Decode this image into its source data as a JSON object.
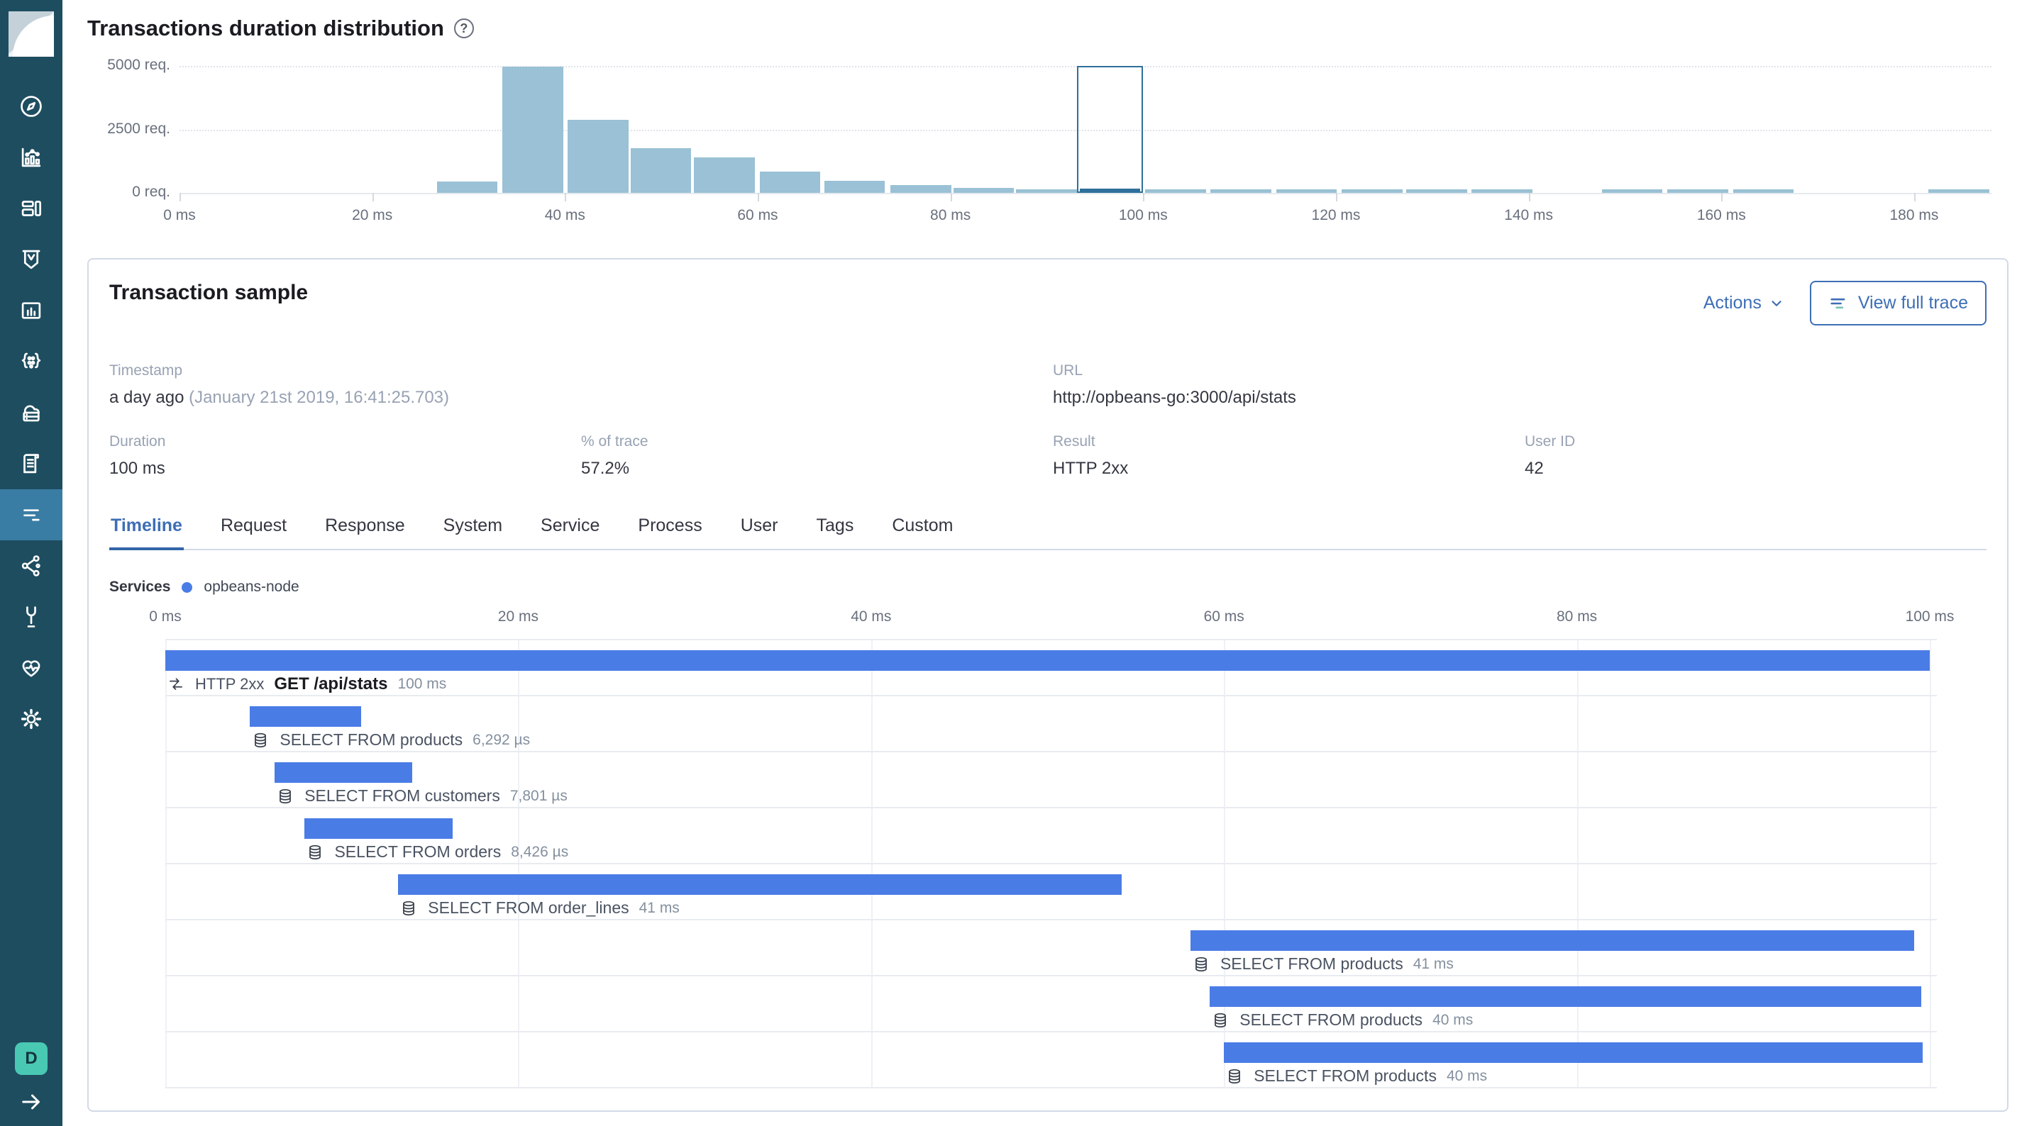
{
  "sidebar": {
    "items": [
      "discover",
      "visualize",
      "dashboard",
      "timelion",
      "canvas",
      "machine-learning",
      "infrastructure",
      "logs",
      "apm",
      "graph",
      "dev-tools",
      "monitoring",
      "management"
    ],
    "active_item": "apm",
    "avatar_label": "D"
  },
  "distribution": {
    "title": "Transactions duration distribution",
    "help": "?"
  },
  "chart_data": {
    "type": "bar",
    "title": "Transactions duration distribution",
    "x_tick_values_ms": [
      0,
      20,
      40,
      60,
      80,
      100,
      120,
      140,
      160,
      180
    ],
    "x_tick_labels": [
      "0 ms",
      "20 ms",
      "40 ms",
      "60 ms",
      "80 ms",
      "100 ms",
      "120 ms",
      "140 ms",
      "160 ms",
      "180 ms"
    ],
    "y_tick_values": [
      0,
      2500,
      5000
    ],
    "y_tick_labels": [
      "0 req.",
      "2500 req.",
      "5000 req."
    ],
    "ylim": [
      0,
      5000
    ],
    "bucket_width_ms": 6.77,
    "grid": "dotted-horizontal",
    "buckets": [
      {
        "start_ms": 26.7,
        "count": 447
      },
      {
        "start_ms": 33.5,
        "count": 4980
      },
      {
        "start_ms": 40.3,
        "count": 2870
      },
      {
        "start_ms": 46.8,
        "count": 1760
      },
      {
        "start_ms": 53.4,
        "count": 1390
      },
      {
        "start_ms": 60.2,
        "count": 840
      },
      {
        "start_ms": 66.9,
        "count": 480
      },
      {
        "start_ms": 73.8,
        "count": 300
      },
      {
        "start_ms": 80.3,
        "count": 200
      },
      {
        "start_ms": 86.8,
        "count": 150
      },
      {
        "start_ms": 93.4,
        "count": 170,
        "selected": true
      },
      {
        "start_ms": 100.2,
        "count": 150
      },
      {
        "start_ms": 107.0,
        "count": 150
      },
      {
        "start_ms": 113.8,
        "count": 150
      },
      {
        "start_ms": 120.6,
        "count": 150
      },
      {
        "start_ms": 127.3,
        "count": 150
      },
      {
        "start_ms": 134.1,
        "count": 150
      },
      {
        "start_ms": 147.6,
        "count": 150
      },
      {
        "start_ms": 154.4,
        "count": 150
      },
      {
        "start_ms": 161.2,
        "count": 150
      },
      {
        "start_ms": 181.5,
        "count": 150
      }
    ],
    "bar_color": "#9ac1d5",
    "selected_color": "#2e709b"
  },
  "sample": {
    "title": "Transaction sample",
    "actions_label": "Actions",
    "view_full_trace_label": "View full trace",
    "fields": {
      "timestamp_label": "Timestamp",
      "timestamp_value": "a day ago",
      "timestamp_detail": "(January 21st 2019, 16:41:25.703)",
      "url_label": "URL",
      "url_value": "http://opbeans-go:3000/api/stats",
      "duration_label": "Duration",
      "duration_value": "100 ms",
      "trace_pct_label": "% of trace",
      "trace_pct_value": "57.2%",
      "result_label": "Result",
      "result_value": "HTTP 2xx",
      "user_id_label": "User ID",
      "user_id_value": "42"
    },
    "tabs": [
      "Timeline",
      "Request",
      "Response",
      "System",
      "Service",
      "Process",
      "User",
      "Tags",
      "Custom"
    ],
    "active_tab": "Timeline",
    "services_label": "Services",
    "service_legend": {
      "name": "opbeans-node",
      "color": "#4a7ce6"
    },
    "waterfall": {
      "axis_tick_values_ms": [
        0,
        20,
        40,
        60,
        80,
        100
      ],
      "axis_tick_labels": [
        "0 ms",
        "20 ms",
        "40 ms",
        "60 ms",
        "80 ms",
        "100 ms"
      ],
      "bar_color": "#4a7ce6",
      "items": [
        {
          "kind": "transaction",
          "icon": "merge-icon",
          "badge": "HTTP 2xx",
          "name": "GET /api/stats",
          "duration_label": "100 ms",
          "start_ms": 0,
          "duration_ms": 100
        },
        {
          "kind": "span",
          "icon": "database-icon",
          "name": "SELECT FROM products",
          "duration_label": "6,292 µs",
          "start_ms": 4.8,
          "duration_ms": 6.3
        },
        {
          "kind": "span",
          "icon": "database-icon",
          "name": "SELECT FROM customers",
          "duration_label": "7,801 µs",
          "start_ms": 6.2,
          "duration_ms": 7.8
        },
        {
          "kind": "span",
          "icon": "database-icon",
          "name": "SELECT FROM orders",
          "duration_label": "8,426 µs",
          "start_ms": 7.9,
          "duration_ms": 8.4
        },
        {
          "kind": "span",
          "icon": "database-icon",
          "name": "SELECT FROM order_lines",
          "duration_label": "41 ms",
          "start_ms": 13.2,
          "duration_ms": 41
        },
        {
          "kind": "span",
          "icon": "database-icon",
          "name": "SELECT FROM products",
          "duration_label": "41 ms",
          "start_ms": 58.1,
          "duration_ms": 41
        },
        {
          "kind": "span",
          "icon": "database-icon",
          "name": "SELECT FROM products",
          "duration_label": "40 ms",
          "start_ms": 59.2,
          "duration_ms": 40.3
        },
        {
          "kind": "span",
          "icon": "database-icon",
          "name": "SELECT FROM products",
          "duration_label": "40 ms",
          "start_ms": 60.0,
          "duration_ms": 39.6
        }
      ]
    }
  }
}
